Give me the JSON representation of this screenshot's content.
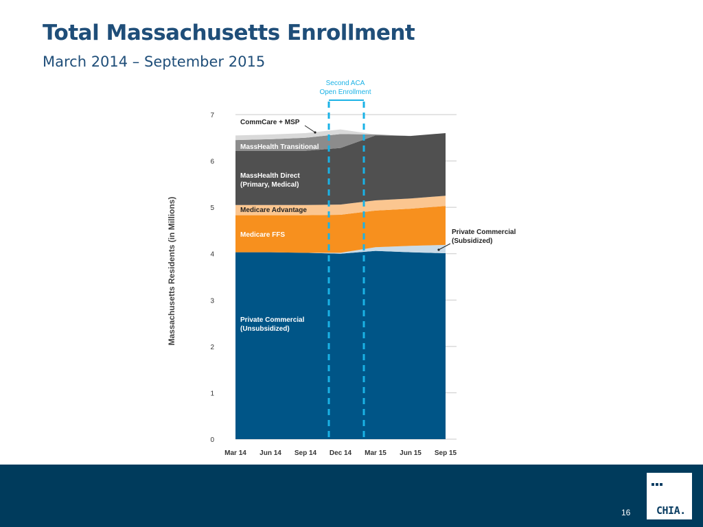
{
  "page": {
    "title": "Total Massachusetts Enrollment",
    "subtitle": "March 2014 – September 2015",
    "page_number": "16",
    "logo_text": "CHIA."
  },
  "chart_data": {
    "type": "area",
    "stacked": true,
    "ylabel": "Massachusetts Residents (in Millions)",
    "xlabel": "",
    "ylim": [
      0,
      7
    ],
    "yticks": [
      0,
      1,
      2,
      3,
      4,
      5,
      6,
      7
    ],
    "gridlines": true,
    "categories": [
      "Mar 14",
      "Jun 14",
      "Sep 14",
      "Dec 14",
      "Mar 15",
      "Jun 15",
      "Sep 15"
    ],
    "series": [
      {
        "name": "Private Commercial (Unsubsidized)",
        "color": "#005587",
        "values": [
          4.03,
          4.03,
          4.02,
          4.0,
          4.06,
          4.03,
          4.01
        ]
      },
      {
        "name": "Private Commercial (Subsidized)",
        "color": "#c9dbe8",
        "values": [
          0.0,
          0.0,
          0.0,
          0.02,
          0.08,
          0.14,
          0.18
        ]
      },
      {
        "name": "Medicare FFS",
        "color": "#f7901e",
        "values": [
          0.8,
          0.8,
          0.81,
          0.82,
          0.79,
          0.8,
          0.84
        ]
      },
      {
        "name": "Medicare Advantage",
        "color": "#fbc690",
        "values": [
          0.22,
          0.22,
          0.22,
          0.22,
          0.22,
          0.22,
          0.22
        ]
      },
      {
        "name": "MassHealth Direct (Primary, Medical)",
        "color": "#505050",
        "values": [
          1.17,
          1.17,
          1.17,
          1.22,
          1.4,
          1.35,
          1.35
        ]
      },
      {
        "name": "MassHealth Transitional",
        "color": "#8c8c8c",
        "values": [
          0.23,
          0.25,
          0.28,
          0.3,
          0.02,
          0.0,
          0.0
        ]
      },
      {
        "name": "CommCare + MSP",
        "color": "#d9d9d9",
        "values": [
          0.1,
          0.1,
          0.1,
          0.1,
          0.0,
          0.0,
          0.0
        ]
      }
    ],
    "annotations": {
      "enrollment_label": [
        "Second ACA",
        "Open Enrollment"
      ],
      "enrollment_color": "#1ab2e6",
      "enrollment_window": [
        "Nov 14",
        "Feb 15"
      ]
    },
    "series_labels": [
      {
        "lines": [
          "CommCare + MSP"
        ],
        "color": "#222222"
      },
      {
        "lines": [
          "MassHealth Transitional"
        ],
        "color": "#ffffff"
      },
      {
        "lines": [
          "MassHealth Direct",
          "(Primary, Medical)"
        ],
        "color": "#ffffff"
      },
      {
        "lines": [
          "Medicare Advantage"
        ],
        "color": "#222222"
      },
      {
        "lines": [
          "Medicare FFS"
        ],
        "color": "#ffffff"
      },
      {
        "lines": [
          "Private Commercial",
          "(Subsidized)"
        ],
        "color": "#222222"
      },
      {
        "lines": [
          "Private Commercial",
          "(Unsubsidized)"
        ],
        "color": "#ffffff"
      }
    ]
  }
}
